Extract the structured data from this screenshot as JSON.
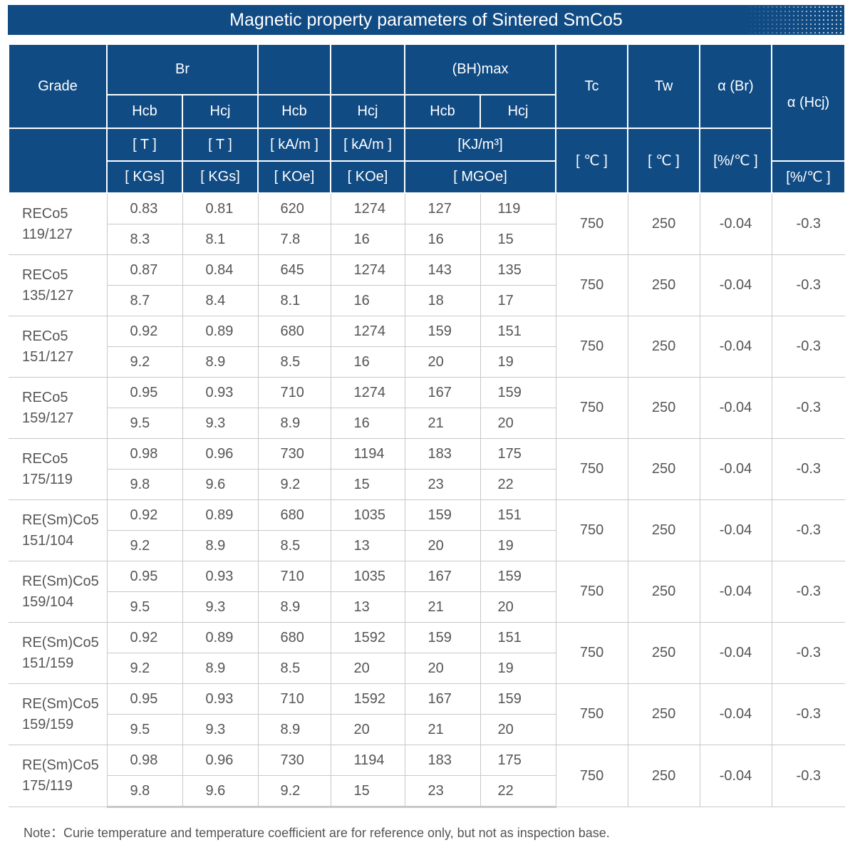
{
  "title": "Magnetic property parameters of Sintered SmCo5",
  "header": {
    "grade": "Grade",
    "br": "Br",
    "bhmax": "(BH)max",
    "tc": "Tc",
    "tw": "Tw",
    "alpha_br": "α (Br)",
    "alpha_hcj": "α (Hcj)",
    "hcb": "Hcb",
    "hcj": "Hcj",
    "unit_t": "[ T ]",
    "unit_kam": "[ kA/m ]",
    "unit_kj": "[KJ/m³]",
    "unit_c": "[ ℃ ]",
    "unit_pct": "[%/℃ ]",
    "unit_kgs": "[ KGs]",
    "unit_koe": "[ KOe]",
    "unit_mgoe": "[ MGOe]"
  },
  "rows": [
    {
      "grade1": "RECo5",
      "grade2": "119/127",
      "si": [
        "0.83",
        "0.81",
        "620",
        "1274",
        "127",
        "119"
      ],
      "cgs": [
        "8.3",
        "8.1",
        "7.8",
        "16",
        "16",
        "15"
      ],
      "tc": "750",
      "tw": "250",
      "abr": "-0.04",
      "ahcj": "-0.3"
    },
    {
      "grade1": "RECo5",
      "grade2": "135/127",
      "si": [
        "0.87",
        "0.84",
        "645",
        "1274",
        "143",
        "135"
      ],
      "cgs": [
        "8.7",
        "8.4",
        "8.1",
        "16",
        "18",
        "17"
      ],
      "tc": "750",
      "tw": "250",
      "abr": "-0.04",
      "ahcj": "-0.3"
    },
    {
      "grade1": "RECo5",
      "grade2": "151/127",
      "si": [
        "0.92",
        "0.89",
        "680",
        "1274",
        "159",
        "151"
      ],
      "cgs": [
        "9.2",
        "8.9",
        "8.5",
        "16",
        "20",
        "19"
      ],
      "tc": "750",
      "tw": "250",
      "abr": "-0.04",
      "ahcj": "-0.3"
    },
    {
      "grade1": "RECo5",
      "grade2": "159/127",
      "si": [
        "0.95",
        "0.93",
        "710",
        "1274",
        "167",
        "159"
      ],
      "cgs": [
        "9.5",
        "9.3",
        "8.9",
        "16",
        "21",
        "20"
      ],
      "tc": "750",
      "tw": "250",
      "abr": "-0.04",
      "ahcj": "-0.3"
    },
    {
      "grade1": "RECo5",
      "grade2": "175/119",
      "si": [
        "0.98",
        "0.96",
        "730",
        "1194",
        "183",
        "175"
      ],
      "cgs": [
        "9.8",
        "9.6",
        "9.2",
        "15",
        "23",
        "22"
      ],
      "tc": "750",
      "tw": "250",
      "abr": "-0.04",
      "ahcj": "-0.3"
    },
    {
      "grade1": "RE(Sm)Co5",
      "grade2": "151/104",
      "si": [
        "0.92",
        "0.89",
        "680",
        "1035",
        "159",
        "151"
      ],
      "cgs": [
        "9.2",
        "8.9",
        "8.5",
        "13",
        "20",
        "19"
      ],
      "tc": "750",
      "tw": "250",
      "abr": "-0.04",
      "ahcj": "-0.3"
    },
    {
      "grade1": "RE(Sm)Co5",
      "grade2": "159/104",
      "si": [
        "0.95",
        "0.93",
        "710",
        "1035",
        "167",
        "159"
      ],
      "cgs": [
        "9.5",
        "9.3",
        "8.9",
        "13",
        "21",
        "20"
      ],
      "tc": "750",
      "tw": "250",
      "abr": "-0.04",
      "ahcj": "-0.3"
    },
    {
      "grade1": "RE(Sm)Co5",
      "grade2": "151/159",
      "si": [
        "0.92",
        "0.89",
        "680",
        "1592",
        "159",
        "151"
      ],
      "cgs": [
        "9.2",
        "8.9",
        "8.5",
        "20",
        "20",
        "19"
      ],
      "tc": "750",
      "tw": "250",
      "abr": "-0.04",
      "ahcj": "-0.3"
    },
    {
      "grade1": "RE(Sm)Co5",
      "grade2": "159/159",
      "si": [
        "0.95",
        "0.93",
        "710",
        "1592",
        "167",
        "159"
      ],
      "cgs": [
        "9.5",
        "9.3",
        "8.9",
        "20",
        "21",
        "20"
      ],
      "tc": "750",
      "tw": "250",
      "abr": "-0.04",
      "ahcj": "-0.3"
    },
    {
      "grade1": "RE(Sm)Co5",
      "grade2": "175/119",
      "si": [
        "0.98",
        "0.96",
        "730",
        "1194",
        "183",
        "175"
      ],
      "cgs": [
        "9.8",
        "9.6",
        "9.2",
        "15",
        "23",
        "22"
      ],
      "tc": "750",
      "tw": "250",
      "abr": "-0.04",
      "ahcj": "-0.3"
    }
  ],
  "note": "Note：Curie temperature and temperature coefficient are for reference only, but not as inspection base."
}
